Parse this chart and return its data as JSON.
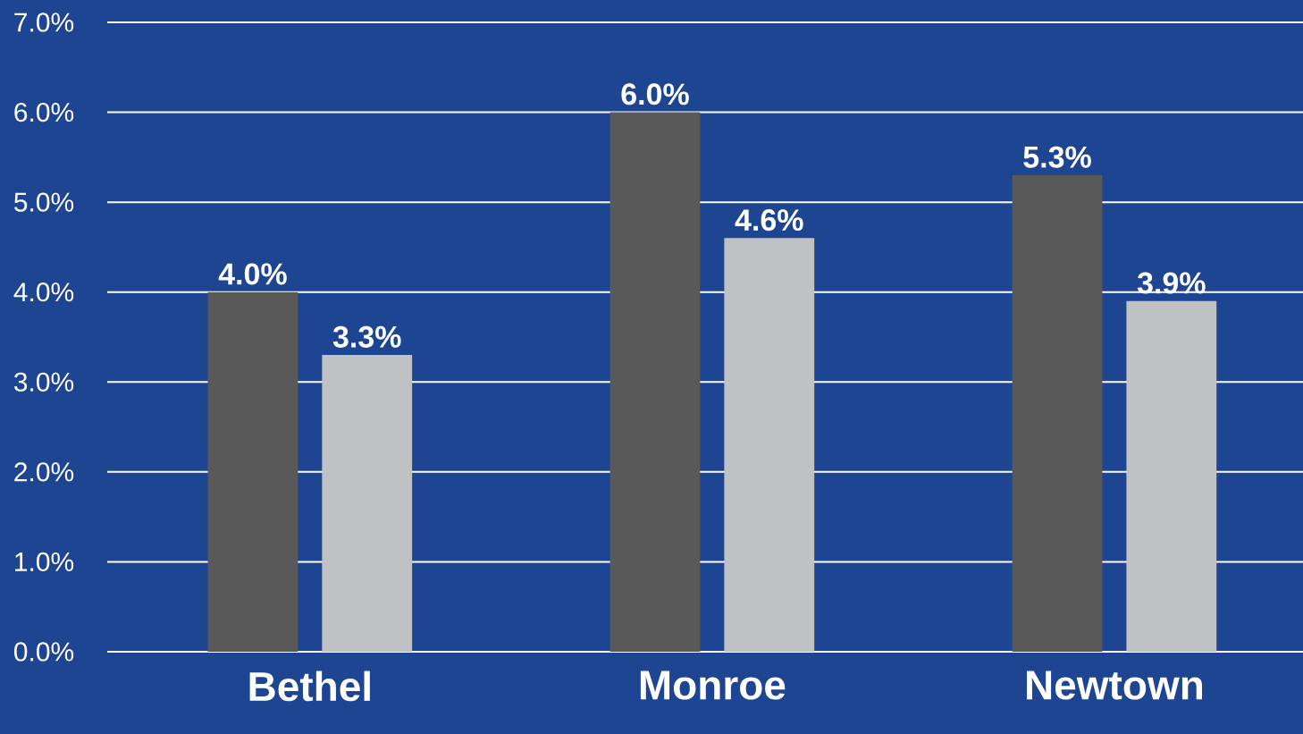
{
  "chart_data": {
    "type": "bar",
    "categories": [
      "Bethel",
      "Monroe",
      "Newtown"
    ],
    "series": [
      {
        "color": "#595959",
        "values": [
          4.0,
          6.0,
          5.3
        ],
        "value_labels": [
          "4.0%",
          "6.0%",
          "5.3%"
        ]
      },
      {
        "color": "#bfc1c4",
        "values": [
          3.3,
          4.6,
          3.9
        ],
        "value_labels": [
          "3.3%",
          "4.6%",
          "3.9%"
        ]
      }
    ],
    "ylim": [
      0,
      7
    ],
    "yticks": [
      {
        "value": 0,
        "label": "0.0%"
      },
      {
        "value": 1,
        "label": "1.0%"
      },
      {
        "value": 2,
        "label": "2.0%"
      },
      {
        "value": 3,
        "label": "3.0%"
      },
      {
        "value": 4,
        "label": "4.0%"
      },
      {
        "value": 5,
        "label": "5.0%"
      },
      {
        "value": 6,
        "label": "6.0%"
      },
      {
        "value": 7,
        "label": "7.0%"
      }
    ],
    "grid": "y"
  }
}
